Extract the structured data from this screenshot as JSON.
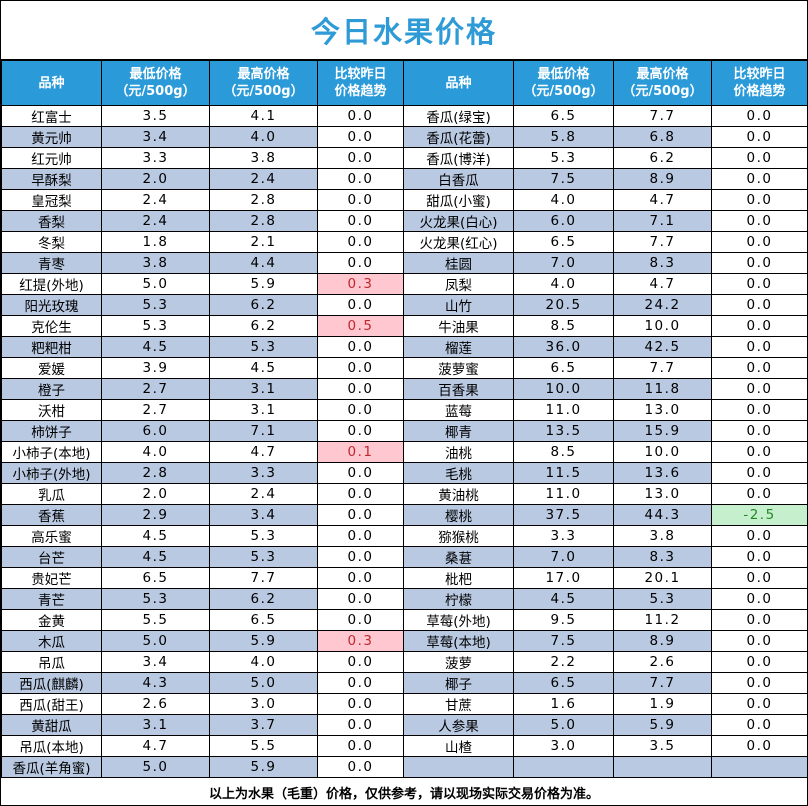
{
  "title": "今日水果价格",
  "headers": {
    "name": "品种",
    "low_l1": "最低价格",
    "low_l2": "（元/500g）",
    "high_l1": "最高价格",
    "high_l2": "（元/500g）",
    "trend_l1": "比较昨日",
    "trend_l2": "价格趋势"
  },
  "colors": {
    "title": "#2f9bd6",
    "header": "#2a9ad8",
    "band": "#b9c9e2",
    "up_bg": "#ffc7cf",
    "up_text": "#c0282e",
    "down_bg": "#c6efce",
    "down_text": "#238a23"
  },
  "rows": [
    {
      "left": {
        "name": "红富士",
        "low": "3.5",
        "high": "4.1",
        "trend": "0.0",
        "status": "flat"
      },
      "right": {
        "name": "香瓜(绿宝)",
        "low": "6.5",
        "high": "7.7",
        "trend": "0.0",
        "status": "flat"
      }
    },
    {
      "left": {
        "name": "黄元帅",
        "low": "3.4",
        "high": "4.0",
        "trend": "0.0",
        "status": "flat"
      },
      "right": {
        "name": "香瓜(花蕾)",
        "low": "5.8",
        "high": "6.8",
        "trend": "0.0",
        "status": "flat"
      }
    },
    {
      "left": {
        "name": "红元帅",
        "low": "3.3",
        "high": "3.8",
        "trend": "0.0",
        "status": "flat"
      },
      "right": {
        "name": "香瓜(博洋)",
        "low": "5.3",
        "high": "6.2",
        "trend": "0.0",
        "status": "flat"
      }
    },
    {
      "left": {
        "name": "早酥梨",
        "low": "2.0",
        "high": "2.4",
        "trend": "0.0",
        "status": "flat"
      },
      "right": {
        "name": "白香瓜",
        "low": "7.5",
        "high": "8.9",
        "trend": "0.0",
        "status": "flat"
      }
    },
    {
      "left": {
        "name": "皇冠梨",
        "low": "2.4",
        "high": "2.8",
        "trend": "0.0",
        "status": "flat"
      },
      "right": {
        "name": "甜瓜(小蜜)",
        "low": "4.0",
        "high": "4.7",
        "trend": "0.0",
        "status": "flat"
      }
    },
    {
      "left": {
        "name": "香梨",
        "low": "2.4",
        "high": "2.8",
        "trend": "0.0",
        "status": "flat"
      },
      "right": {
        "name": "火龙果(白心)",
        "low": "6.0",
        "high": "7.1",
        "trend": "0.0",
        "status": "flat"
      }
    },
    {
      "left": {
        "name": "冬梨",
        "low": "1.8",
        "high": "2.1",
        "trend": "0.0",
        "status": "flat"
      },
      "right": {
        "name": "火龙果(红心)",
        "low": "6.5",
        "high": "7.7",
        "trend": "0.0",
        "status": "flat"
      }
    },
    {
      "left": {
        "name": "青枣",
        "low": "3.8",
        "high": "4.4",
        "trend": "0.0",
        "status": "flat"
      },
      "right": {
        "name": "桂圆",
        "low": "7.0",
        "high": "8.3",
        "trend": "0.0",
        "status": "flat"
      }
    },
    {
      "left": {
        "name": "红提(外地)",
        "low": "5.0",
        "high": "5.9",
        "trend": "0.3",
        "status": "up"
      },
      "right": {
        "name": "凤梨",
        "low": "4.0",
        "high": "4.7",
        "trend": "0.0",
        "status": "flat"
      }
    },
    {
      "left": {
        "name": "阳光玫瑰",
        "low": "5.3",
        "high": "6.2",
        "trend": "0.0",
        "status": "flat"
      },
      "right": {
        "name": "山竹",
        "low": "20.5",
        "high": "24.2",
        "trend": "0.0",
        "status": "flat"
      }
    },
    {
      "left": {
        "name": "克伦生",
        "low": "5.3",
        "high": "6.2",
        "trend": "0.5",
        "status": "up"
      },
      "right": {
        "name": "牛油果",
        "low": "8.5",
        "high": "10.0",
        "trend": "0.0",
        "status": "flat"
      }
    },
    {
      "left": {
        "name": "粑粑柑",
        "low": "4.5",
        "high": "5.3",
        "trend": "0.0",
        "status": "flat"
      },
      "right": {
        "name": "榴莲",
        "low": "36.0",
        "high": "42.5",
        "trend": "0.0",
        "status": "flat"
      }
    },
    {
      "left": {
        "name": "爱媛",
        "low": "3.9",
        "high": "4.5",
        "trend": "0.0",
        "status": "flat"
      },
      "right": {
        "name": "菠萝蜜",
        "low": "6.5",
        "high": "7.7",
        "trend": "0.0",
        "status": "flat"
      }
    },
    {
      "left": {
        "name": "橙子",
        "low": "2.7",
        "high": "3.1",
        "trend": "0.0",
        "status": "flat"
      },
      "right": {
        "name": "百香果",
        "low": "10.0",
        "high": "11.8",
        "trend": "0.0",
        "status": "flat"
      }
    },
    {
      "left": {
        "name": "沃柑",
        "low": "2.7",
        "high": "3.1",
        "trend": "0.0",
        "status": "flat"
      },
      "right": {
        "name": "蓝莓",
        "low": "11.0",
        "high": "13.0",
        "trend": "0.0",
        "status": "flat"
      }
    },
    {
      "left": {
        "name": "柿饼子",
        "low": "6.0",
        "high": "7.1",
        "trend": "0.0",
        "status": "flat"
      },
      "right": {
        "name": "椰青",
        "low": "13.5",
        "high": "15.9",
        "trend": "0.0",
        "status": "flat"
      }
    },
    {
      "left": {
        "name": "小柿子(本地)",
        "low": "4.0",
        "high": "4.7",
        "trend": "0.1",
        "status": "up"
      },
      "right": {
        "name": "油桃",
        "low": "8.5",
        "high": "10.0",
        "trend": "0.0",
        "status": "flat"
      }
    },
    {
      "left": {
        "name": "小柿子(外地)",
        "low": "2.8",
        "high": "3.3",
        "trend": "0.0",
        "status": "flat"
      },
      "right": {
        "name": "毛桃",
        "low": "11.5",
        "high": "13.6",
        "trend": "0.0",
        "status": "flat"
      }
    },
    {
      "left": {
        "name": "乳瓜",
        "low": "2.0",
        "high": "2.4",
        "trend": "0.0",
        "status": "flat"
      },
      "right": {
        "name": "黄油桃",
        "low": "11.0",
        "high": "13.0",
        "trend": "0.0",
        "status": "flat"
      }
    },
    {
      "left": {
        "name": "香蕉",
        "low": "2.9",
        "high": "3.4",
        "trend": "0.0",
        "status": "flat"
      },
      "right": {
        "name": "樱桃",
        "low": "37.5",
        "high": "44.3",
        "trend": "-2.5",
        "status": "down"
      }
    },
    {
      "left": {
        "name": "高乐蜜",
        "low": "4.5",
        "high": "5.3",
        "trend": "0.0",
        "status": "flat"
      },
      "right": {
        "name": "猕猴桃",
        "low": "3.3",
        "high": "3.8",
        "trend": "0.0",
        "status": "flat"
      }
    },
    {
      "left": {
        "name": "台芒",
        "low": "4.5",
        "high": "5.3",
        "trend": "0.0",
        "status": "flat"
      },
      "right": {
        "name": "桑葚",
        "low": "7.0",
        "high": "8.3",
        "trend": "0.0",
        "status": "flat"
      }
    },
    {
      "left": {
        "name": "贵妃芒",
        "low": "6.5",
        "high": "7.7",
        "trend": "0.0",
        "status": "flat"
      },
      "right": {
        "name": "枇杷",
        "low": "17.0",
        "high": "20.1",
        "trend": "0.0",
        "status": "flat"
      }
    },
    {
      "left": {
        "name": "青芒",
        "low": "5.3",
        "high": "6.2",
        "trend": "0.0",
        "status": "flat"
      },
      "right": {
        "name": "柠檬",
        "low": "4.5",
        "high": "5.3",
        "trend": "0.0",
        "status": "flat"
      }
    },
    {
      "left": {
        "name": "金黄",
        "low": "5.5",
        "high": "6.5",
        "trend": "0.0",
        "status": "flat"
      },
      "right": {
        "name": "草莓(外地)",
        "low": "9.5",
        "high": "11.2",
        "trend": "0.0",
        "status": "flat"
      }
    },
    {
      "left": {
        "name": "木瓜",
        "low": "5.0",
        "high": "5.9",
        "trend": "0.3",
        "status": "up"
      },
      "right": {
        "name": "草莓(本地)",
        "low": "7.5",
        "high": "8.9",
        "trend": "0.0",
        "status": "flat"
      }
    },
    {
      "left": {
        "name": "吊瓜",
        "low": "3.4",
        "high": "4.0",
        "trend": "0.0",
        "status": "flat"
      },
      "right": {
        "name": "菠萝",
        "low": "2.2",
        "high": "2.6",
        "trend": "0.0",
        "status": "flat"
      }
    },
    {
      "left": {
        "name": "西瓜(麒麟)",
        "low": "4.3",
        "high": "5.0",
        "trend": "0.0",
        "status": "flat"
      },
      "right": {
        "name": "椰子",
        "low": "6.5",
        "high": "7.7",
        "trend": "0.0",
        "status": "flat"
      }
    },
    {
      "left": {
        "name": "西瓜(甜王)",
        "low": "2.6",
        "high": "3.0",
        "trend": "0.0",
        "status": "flat"
      },
      "right": {
        "name": "甘蔗",
        "low": "1.6",
        "high": "1.9",
        "trend": "0.0",
        "status": "flat"
      }
    },
    {
      "left": {
        "name": "黄甜瓜",
        "low": "3.1",
        "high": "3.7",
        "trend": "0.0",
        "status": "flat"
      },
      "right": {
        "name": "人参果",
        "low": "5.0",
        "high": "5.9",
        "trend": "0.0",
        "status": "flat"
      }
    },
    {
      "left": {
        "name": "吊瓜(本地)",
        "low": "4.7",
        "high": "5.5",
        "trend": "0.0",
        "status": "flat"
      },
      "right": {
        "name": "山楂",
        "low": "3.0",
        "high": "3.5",
        "trend": "0.0",
        "status": "flat"
      }
    },
    {
      "left": {
        "name": "香瓜(羊角蜜)",
        "low": "5.0",
        "high": "5.9",
        "trend": "0.0",
        "status": "flat"
      },
      "right": null
    }
  ],
  "footer": "以上为水果（毛重）价格，仅供参考，请以现场实际交易价格为准。"
}
